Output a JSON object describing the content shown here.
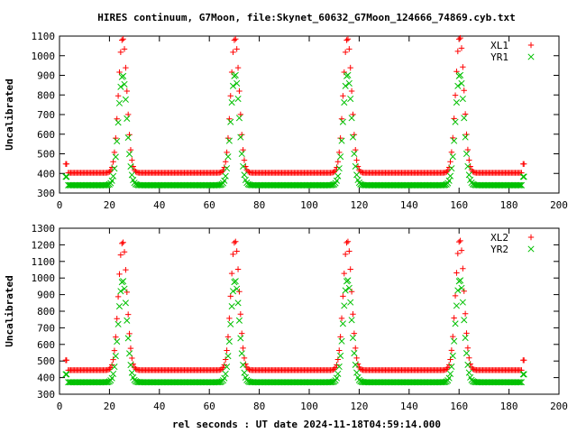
{
  "chart_data": [
    {
      "type": "scatter",
      "title": "HIRES continuum, G7Moon, file:Skynet_60632_G7Moon_124666_74869.cyb.txt",
      "ylabel": "Uncalibrated",
      "xlabel": "",
      "xlim": [
        0,
        200
      ],
      "ylim": [
        300,
        1100
      ],
      "xticks": [
        "0",
        "20",
        "40",
        "60",
        "80",
        "100",
        "120",
        "140",
        "160",
        "180",
        "200"
      ],
      "yticks": [
        "300",
        "400",
        "500",
        "600",
        "700",
        "800",
        "900",
        "1000",
        "1100"
      ],
      "legend_position": "top-right",
      "x_start": 2.5,
      "x_end": 186,
      "peaks": [
        25.3,
        70.3,
        115.3,
        160.3
      ],
      "series": [
        {
          "name": "XL1",
          "marker": "+",
          "color": "#ff0000",
          "baseline": 403,
          "peak_values": [
            1090,
            1090,
            1090,
            1095
          ],
          "endpoint_value": 448
        },
        {
          "name": "YR1",
          "marker": "x",
          "color": "#00c000",
          "baseline": 340,
          "peak_values": [
            900,
            905,
            905,
            905
          ],
          "endpoint_value": 383
        }
      ]
    },
    {
      "type": "scatter",
      "title": "",
      "ylabel": "Uncalibrated",
      "xlabel": "rel seconds : UT date 2024-11-18T04:59:14.000",
      "xlim": [
        0,
        200
      ],
      "ylim": [
        300,
        1300
      ],
      "xticks": [
        "0",
        "20",
        "40",
        "60",
        "80",
        "100",
        "120",
        "140",
        "160",
        "180",
        "200"
      ],
      "yticks": [
        "300",
        "400",
        "500",
        "600",
        "700",
        "800",
        "900",
        "1000",
        "1100",
        "1200",
        "1300"
      ],
      "legend_position": "top-right",
      "x_start": 2.5,
      "x_end": 186,
      "peaks": [
        25.3,
        70.3,
        115.3,
        160.3
      ],
      "series": [
        {
          "name": "XL2",
          "marker": "+",
          "color": "#ff0000",
          "baseline": 445,
          "peak_values": [
            1220,
            1225,
            1225,
            1230
          ],
          "endpoint_value": 505
        },
        {
          "name": "YR2",
          "marker": "x",
          "color": "#00c000",
          "baseline": 372,
          "peak_values": [
            985,
            985,
            990,
            990
          ],
          "endpoint_value": 420
        }
      ]
    }
  ]
}
